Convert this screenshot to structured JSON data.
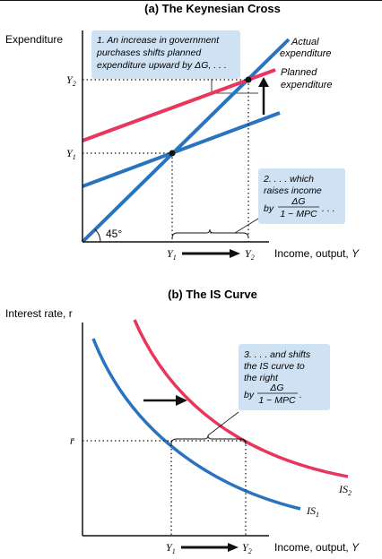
{
  "panel_a": {
    "title": "(a) The Keynesian Cross",
    "y_axis_label": "Expenditure",
    "x_axis_label": "Income, output, ",
    "x_axis_var": "Y",
    "angle_label": "45°",
    "y_ticks": [
      {
        "main": "Y",
        "sub": "2"
      },
      {
        "main": "Y",
        "sub": "1"
      }
    ],
    "x_ticks": [
      {
        "main": "Y",
        "sub": "1"
      },
      {
        "main": "Y",
        "sub": "2"
      }
    ],
    "curve_labels": {
      "actual_line1": "Actual",
      "actual_line2": "expenditure",
      "planned_line1": "Planned",
      "planned_line2": "expenditure"
    },
    "annotation1": {
      "line1": "1. An increase in government",
      "line2": "purchases shifts planned",
      "line3": "expenditure upward by ΔG, . . ."
    },
    "annotation2": {
      "line1": "2. . . . which",
      "line2": "raises income",
      "line3_prefix": "by",
      "numerator": "ΔG",
      "denominator": "1 − MPC",
      "suffix": ". . ."
    }
  },
  "panel_b": {
    "title": "(b) The IS Curve",
    "y_axis_label": "Interest rate, r",
    "x_axis_label": "Income, output, ",
    "x_axis_var": "Y",
    "r_tick": "r̄",
    "x_ticks": [
      {
        "main": "Y",
        "sub": "1"
      },
      {
        "main": "Y",
        "sub": "2"
      }
    ],
    "curve_labels": [
      {
        "main": "IS",
        "sub": "2"
      },
      {
        "main": "IS",
        "sub": "1"
      }
    ],
    "annotation3": {
      "line1": "3. . . . and shifts",
      "line2": "the IS curve to",
      "line3": "the right",
      "line4_prefix": "by",
      "numerator": "ΔG",
      "denominator": "1 − MPC",
      "suffix": "."
    }
  },
  "colors": {
    "blue": "#2a73bf",
    "red": "#e8365c",
    "box": "#cfe2f4",
    "axis": "#111111"
  }
}
